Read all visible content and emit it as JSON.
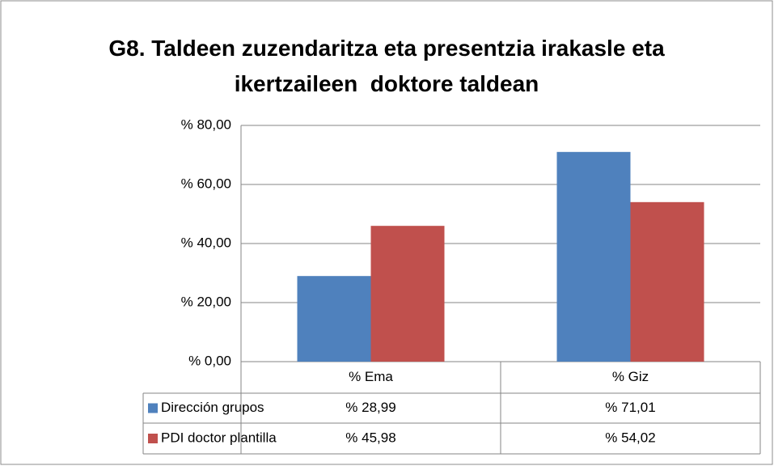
{
  "chart_data": {
    "type": "bar",
    "title": "G8. Taldeen zuzendaritza eta presentzia irakasle eta ikertzaileen  doktore taldean",
    "categories": [
      "% Ema",
      "% Giz"
    ],
    "series": [
      {
        "name": "Dirección grupos",
        "color": "#4f81bd",
        "values": [
          28.99,
          71.01
        ],
        "value_labels": [
          "% 28,99",
          "% 71,01"
        ]
      },
      {
        "name": "PDI doctor plantilla",
        "color": "#c0504d",
        "values": [
          45.98,
          54.02
        ],
        "value_labels": [
          "% 45,98",
          "% 54,02"
        ]
      }
    ],
    "ylim": [
      0,
      80
    ],
    "yticks": [
      {
        "value": 0,
        "label": "% 0,00"
      },
      {
        "value": 20,
        "label": "% 20,00"
      },
      {
        "value": 40,
        "label": "% 40,00"
      },
      {
        "value": 60,
        "label": "% 60,00"
      },
      {
        "value": 80,
        "label": "% 80,00"
      }
    ],
    "grid": true
  }
}
